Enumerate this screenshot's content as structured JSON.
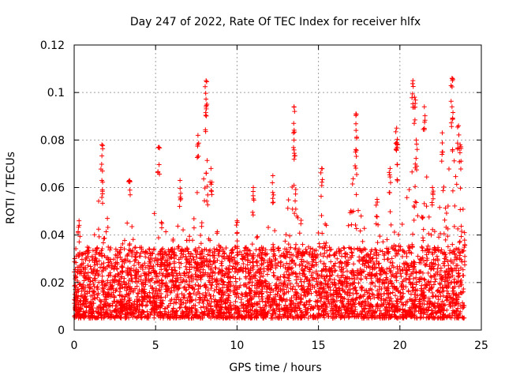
{
  "chart_data": {
    "type": "scatter",
    "title": "Day 247 of 2022, Rate Of TEC Index for receiver hlfx",
    "xlabel": "GPS time / hours",
    "ylabel": "ROTI / TECUs",
    "xlim": [
      0,
      25
    ],
    "ylim": [
      0,
      0.12
    ],
    "xticks": [
      0,
      5,
      10,
      15,
      20,
      25
    ],
    "yticks": [
      0,
      0.02,
      0.04,
      0.06,
      0.08,
      0.1,
      0.12
    ],
    "xtick_labels": [
      "0",
      "5",
      "10",
      "15",
      "20",
      "25"
    ],
    "ytick_labels": [
      "0",
      "0.02",
      "0.04",
      "0.06",
      "0.08",
      "0.1",
      "0.12"
    ],
    "grid": true,
    "marker": "+",
    "series": [
      {
        "name": "ROTI",
        "color": "#ff0000",
        "x_range": [
          0,
          24
        ],
        "baseline_range": [
          0.005,
          0.035
        ],
        "peaks": [
          {
            "x": 0.3,
            "y": 0.046
          },
          {
            "x": 1.7,
            "y": 0.078
          },
          {
            "x": 1.7,
            "y": 0.063
          },
          {
            "x": 3.4,
            "y": 0.063
          },
          {
            "x": 5.2,
            "y": 0.077
          },
          {
            "x": 6.5,
            "y": 0.063
          },
          {
            "x": 7.6,
            "y": 0.082
          },
          {
            "x": 8.1,
            "y": 0.105
          },
          {
            "x": 8.1,
            "y": 0.094
          },
          {
            "x": 8.4,
            "y": 0.068
          },
          {
            "x": 10.0,
            "y": 0.046
          },
          {
            "x": 11.0,
            "y": 0.06
          },
          {
            "x": 12.2,
            "y": 0.065
          },
          {
            "x": 13.5,
            "y": 0.094
          },
          {
            "x": 13.5,
            "y": 0.08
          },
          {
            "x": 15.2,
            "y": 0.068
          },
          {
            "x": 17.3,
            "y": 0.091
          },
          {
            "x": 17.3,
            "y": 0.076
          },
          {
            "x": 18.6,
            "y": 0.055
          },
          {
            "x": 19.4,
            "y": 0.068
          },
          {
            "x": 19.8,
            "y": 0.085
          },
          {
            "x": 19.8,
            "y": 0.079
          },
          {
            "x": 20.8,
            "y": 0.105
          },
          {
            "x": 20.9,
            "y": 0.098
          },
          {
            "x": 21.0,
            "y": 0.08
          },
          {
            "x": 21.5,
            "y": 0.094
          },
          {
            "x": 22.0,
            "y": 0.06
          },
          {
            "x": 22.6,
            "y": 0.083
          },
          {
            "x": 23.2,
            "y": 0.106
          },
          {
            "x": 23.2,
            "y": 0.094
          },
          {
            "x": 23.6,
            "y": 0.086
          },
          {
            "x": 23.7,
            "y": 0.078
          }
        ]
      }
    ]
  }
}
